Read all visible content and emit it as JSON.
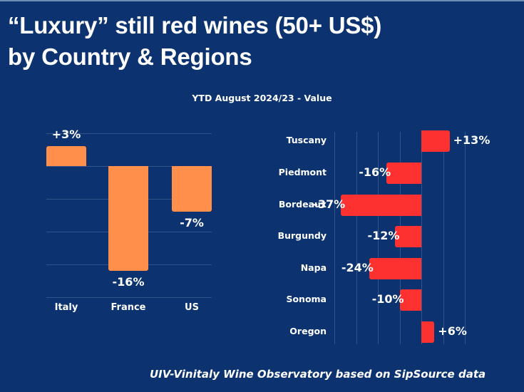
{
  "header": {
    "title_line1": "“Luxury” still red wines (50+ US$)",
    "title_line2": "by Country & Regions",
    "subtitle": "YTD August 2024/23 - Value"
  },
  "footer": {
    "source": "UIV-Vinitaly Wine Observatory based on SipSource data"
  },
  "colors": {
    "background": "#0c336f",
    "country_bar": "#ff8f4a",
    "region_bar": "#fe3131",
    "gridline": "#33548a",
    "text": "#ffffff"
  },
  "chart_data": [
    {
      "type": "bar",
      "orientation": "vertical",
      "title": "“Luxury” still red wines (50+ US$) by Country",
      "subtitle": "YTD August 2024/23 - Value",
      "categories": [
        "Italy",
        "France",
        "US"
      ],
      "values": [
        3,
        -16,
        -7
      ],
      "labels": [
        "+3%",
        "-16%",
        "-7%"
      ],
      "unit": "%",
      "ylim": [
        -20,
        5
      ],
      "grid": true
    },
    {
      "type": "bar",
      "orientation": "horizontal",
      "title": "“Luxury” still red wines (50+ US$) by Region",
      "subtitle": "YTD August 2024/23 - Value",
      "categories": [
        "Tuscany",
        "Piedmont",
        "Bordeaux",
        "Burgundy",
        "Napa",
        "Sonoma",
        "Oregon"
      ],
      "values": [
        13,
        -16,
        -37,
        -12,
        -24,
        -10,
        6
      ],
      "labels": [
        "+13%",
        "-16%",
        "-37%",
        "-12%",
        "-24%",
        "-10%",
        "+6%"
      ],
      "unit": "%",
      "xlim": [
        -40,
        20
      ],
      "grid": true
    }
  ]
}
